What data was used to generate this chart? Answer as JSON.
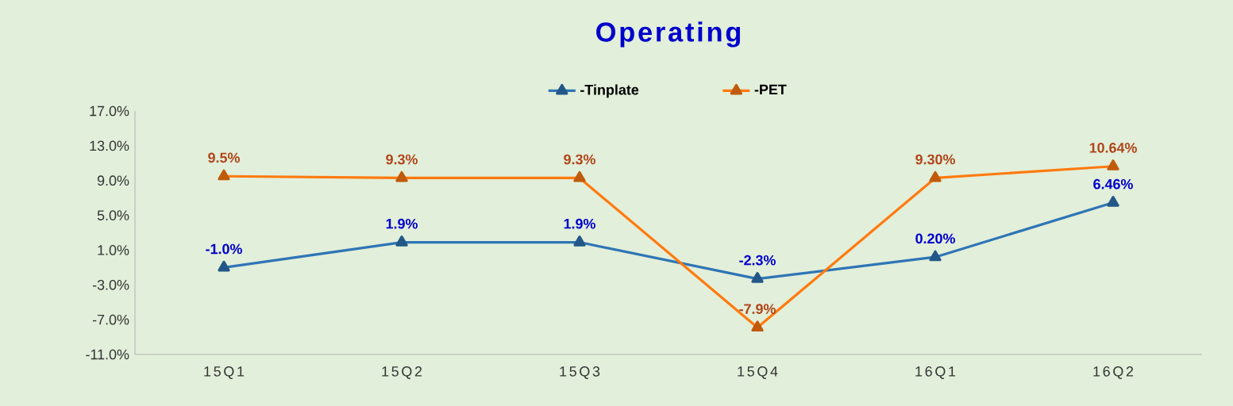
{
  "chart_data": {
    "type": "line",
    "title": "Operating",
    "categories": [
      "15Q1",
      "15Q2",
      "15Q3",
      "15Q4",
      "16Q1",
      "16Q2"
    ],
    "series": [
      {
        "name": "-Tinplate",
        "color": "#2e75b6",
        "values": [
          -1.0,
          1.9,
          1.9,
          -2.3,
          0.2,
          6.46
        ],
        "value_labels": [
          "-1.0%",
          "1.9%",
          "1.9%",
          "-2.3%",
          "0.20%",
          "6.46%"
        ]
      },
      {
        "name": "-PET",
        "color": "#ff7a0e",
        "values": [
          9.5,
          9.3,
          9.3,
          -7.9,
          9.3,
          10.64
        ],
        "value_labels": [
          "9.5%",
          "9.3%",
          "9.3%",
          "-7.9%",
          "9.30%",
          "10.64%"
        ]
      }
    ],
    "ylim": [
      -11,
      17
    ],
    "yticks": [
      {
        "value": -11,
        "label": "-11.0%"
      },
      {
        "value": -7,
        "label": "-7.0%"
      },
      {
        "value": -3,
        "label": "-3.0%"
      },
      {
        "value": 1,
        "label": "1.0%"
      },
      {
        "value": 5,
        "label": "5.0%"
      },
      {
        "value": 9,
        "label": "9.0%"
      },
      {
        "value": 13,
        "label": "13.0%"
      },
      {
        "value": 17,
        "label": "17.0%"
      }
    ],
    "legend": "top",
    "marker": "triangle",
    "line_style": "solid"
  }
}
